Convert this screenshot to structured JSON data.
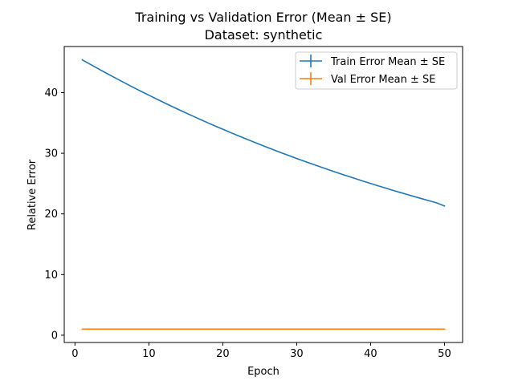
{
  "chart_data": {
    "type": "line",
    "title": "Training vs Validation Error (Mean ± SE)",
    "subtitle": "Dataset: synthetic",
    "xlabel": "Epoch",
    "ylabel": "Relative Error",
    "xlim": [
      -1.45,
      52.45
    ],
    "ylim": [
      -1.2,
      47.6
    ],
    "xticks": [
      0,
      10,
      20,
      30,
      40,
      50
    ],
    "yticks": [
      0,
      10,
      20,
      30,
      40
    ],
    "grid": false,
    "legend_position": "top-right",
    "x": [
      1,
      2,
      3,
      4,
      5,
      6,
      7,
      8,
      9,
      10,
      11,
      12,
      13,
      14,
      15,
      16,
      17,
      18,
      19,
      20,
      21,
      22,
      23,
      24,
      25,
      26,
      27,
      28,
      29,
      30,
      31,
      32,
      33,
      34,
      35,
      36,
      37,
      38,
      39,
      40,
      41,
      42,
      43,
      44,
      45,
      46,
      47,
      48,
      49,
      50
    ],
    "series": [
      {
        "name": "Train Error Mean ± SE",
        "color": "#1f77b4",
        "values": [
          45.4,
          44.71,
          44.04,
          43.37,
          42.71,
          42.07,
          41.43,
          40.8,
          40.18,
          39.57,
          38.97,
          38.38,
          37.8,
          37.22,
          36.66,
          36.1,
          35.55,
          35.01,
          34.48,
          33.96,
          33.44,
          32.94,
          32.44,
          31.94,
          31.46,
          30.98,
          30.51,
          30.05,
          29.59,
          29.14,
          28.7,
          28.27,
          27.84,
          27.42,
          27.0,
          26.59,
          26.19,
          25.79,
          25.4,
          25.02,
          24.64,
          24.27,
          23.9,
          23.54,
          23.18,
          22.83,
          22.48,
          22.14,
          21.8,
          21.3
        ]
      },
      {
        "name": "Val Error Mean ± SE",
        "color": "#ff7f0e",
        "values": [
          1.0,
          1.0,
          1.0,
          1.0,
          1.0,
          1.0,
          1.0,
          1.0,
          1.0,
          1.0,
          1.0,
          1.0,
          1.0,
          1.0,
          1.0,
          1.0,
          1.0,
          1.0,
          1.0,
          1.0,
          1.0,
          1.0,
          1.0,
          1.0,
          1.0,
          1.0,
          1.0,
          1.0,
          1.0,
          1.0,
          1.0,
          1.0,
          1.0,
          1.0,
          1.0,
          1.0,
          1.0,
          1.0,
          1.0,
          1.0,
          1.0,
          1.0,
          1.0,
          1.0,
          1.0,
          1.0,
          1.0,
          1.0,
          1.0,
          1.0
        ]
      }
    ]
  }
}
